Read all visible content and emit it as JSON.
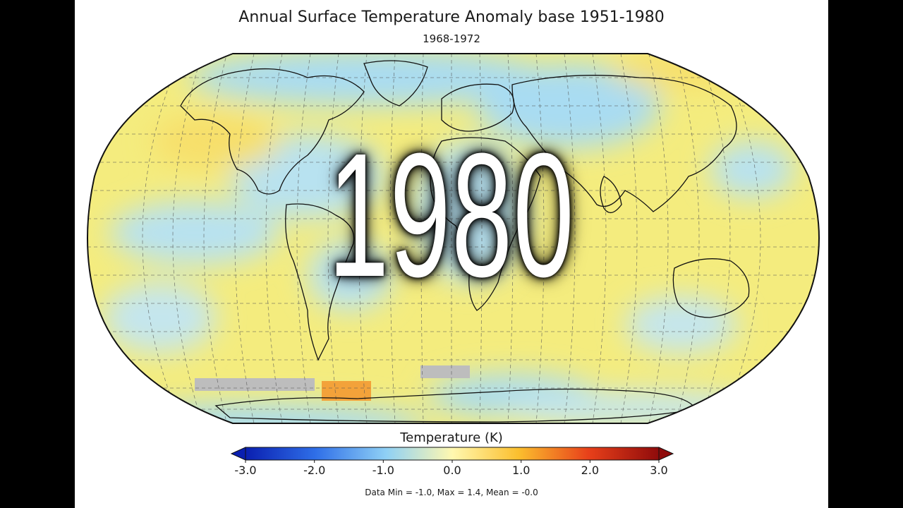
{
  "title": "Annual Surface Temperature Anomaly base 1951-1980",
  "subtitle": "1968-1972",
  "overlay_year": "1980",
  "colorbar": {
    "label": "Temperature (K)",
    "ticks": [
      "-3.0",
      "-2.0",
      "-1.0",
      "0.0",
      "1.0",
      "2.0",
      "3.0"
    ],
    "min": -3.0,
    "max": 3.0,
    "colors": [
      "#0a1fb0",
      "#2f6fe8",
      "#8fd0f5",
      "#fff8b0",
      "#fbbf2e",
      "#e8401a",
      "#8f0b0b"
    ]
  },
  "stats": "Data Min = -1.0, Max = 1.4, Mean = -0.0",
  "map": {
    "projection": "robinson",
    "ocean_color": "#f4ec7e",
    "land_cool_color": "#a9dcf2",
    "no_data_color": "#bdbdbd",
    "grid": true
  }
}
